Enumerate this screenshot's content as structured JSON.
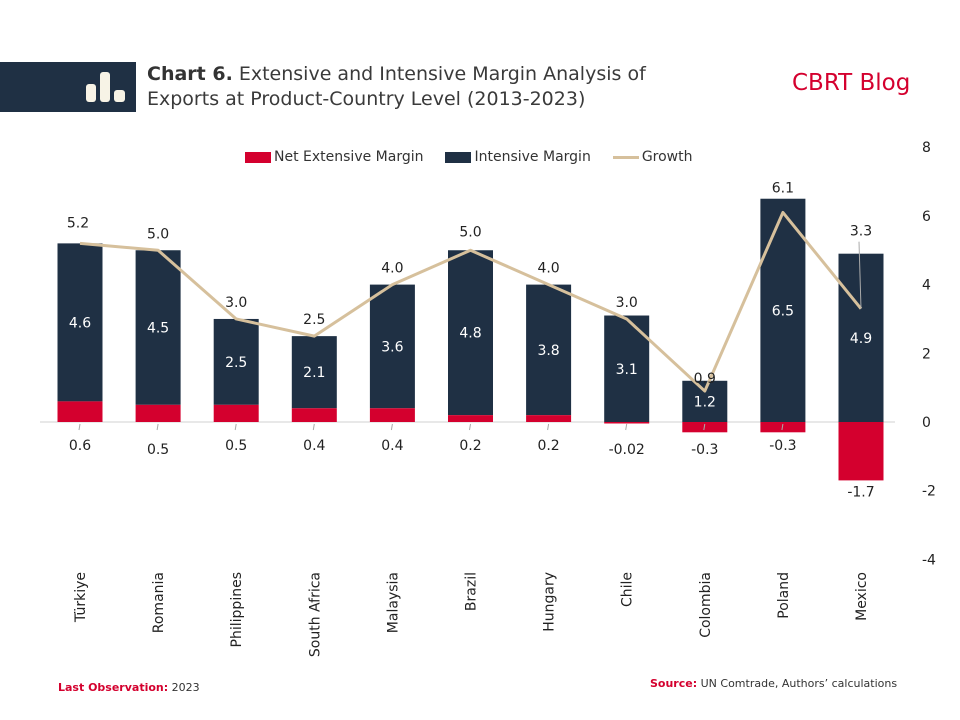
{
  "header": {
    "chart_number": "Chart 6.",
    "title": "Extensive and Intensive Margin Analysis of Exports at Product-Country Level (2013-2023)",
    "brand": "CBRT Blog",
    "icon": "bar-chart-icon"
  },
  "colors": {
    "net_extensive": "#d4002e",
    "intensive": "#1f3044",
    "growth": "#d6c09c",
    "brand": "#d4002e",
    "axis_line": "#d0d0d0"
  },
  "legend": [
    {
      "label": "Net Extensive Margin",
      "type": "bar"
    },
    {
      "label": "Intensive Margin",
      "type": "bar"
    },
    {
      "label": "Growth",
      "type": "line"
    }
  ],
  "footer": {
    "last_obs_label": "Last Observation:",
    "last_obs_value": "2023",
    "source_label": "Source:",
    "source_value": "UN Comtrade, Authors’ calculations"
  },
  "chart_data": {
    "type": "bar",
    "stacked": true,
    "title": "Extensive and Intensive Margin Analysis of Exports at Product-Country Level (2013-2023)",
    "xlabel": "",
    "ylabel": "",
    "categories": [
      "Türkiye",
      "Romania",
      "Philippines",
      "South Africa",
      "Malaysia",
      "Brazil",
      "Hungary",
      "Chile",
      "Colombia",
      "Poland",
      "Mexico"
    ],
    "series": [
      {
        "name": "Net Extensive Margin",
        "type": "bar",
        "values": [
          0.6,
          0.5,
          0.5,
          0.4,
          0.4,
          0.2,
          0.2,
          -0.02,
          -0.3,
          -0.3,
          -1.7
        ],
        "labels": [
          "0.6",
          "0.5",
          "0.5",
          "0.4",
          "0.4",
          "0.2",
          "0.2",
          "-0.02",
          "-0.3",
          "-0.3",
          "-1.7"
        ]
      },
      {
        "name": "Intensive Margin",
        "type": "bar",
        "values": [
          4.6,
          4.5,
          2.5,
          2.1,
          3.6,
          4.8,
          3.8,
          3.1,
          1.2,
          6.5,
          4.9
        ],
        "labels": [
          "4.6",
          "4.5",
          "2.5",
          "2.1",
          "3.6",
          "4.8",
          "3.8",
          "3.1",
          "1.2",
          "6.5",
          "4.9"
        ]
      },
      {
        "name": "Growth",
        "type": "line",
        "values": [
          5.2,
          5.0,
          3.0,
          2.5,
          4.0,
          5.0,
          4.0,
          3.0,
          0.9,
          6.1,
          3.3
        ],
        "labels": [
          "5.2",
          "5.0",
          "3.0",
          "2.5",
          "4.0",
          "5.0",
          "4.0",
          "3.0",
          "0.9",
          "6.1",
          "3.3"
        ]
      }
    ],
    "ylim": [
      -4,
      8
    ],
    "yticks": [
      8,
      6,
      4,
      2,
      0,
      -2,
      -4
    ],
    "y_axis_side": "right",
    "grid": false,
    "legend_position": "top"
  }
}
